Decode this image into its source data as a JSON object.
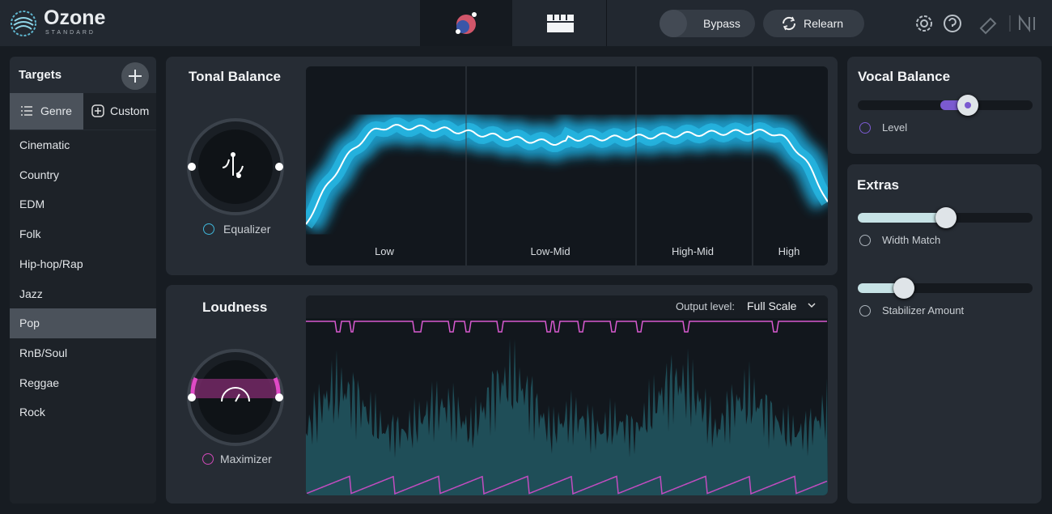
{
  "header": {
    "logo": "Ozone",
    "edition": "STANDARD",
    "bypass": "Bypass",
    "relearn": "Relearn"
  },
  "targets": {
    "title": "Targets",
    "tabs": [
      "Genre",
      "Custom"
    ],
    "genres": [
      "Cinematic",
      "Country",
      "EDM",
      "Folk",
      "Hip-hop/Rap",
      "Jazz",
      "Pop",
      "RnB/Soul",
      "Reggae",
      "Rock"
    ]
  },
  "tonal_balance": {
    "title": "Tonal Balance",
    "module": "Equalizer",
    "bands": [
      "Low",
      "Low-Mid",
      "High-Mid",
      "High"
    ]
  },
  "loudness": {
    "title": "Loudness",
    "module": "Maximizer",
    "output_label": "Output level:",
    "output_value": "Full Scale"
  },
  "vocal_balance": {
    "title": "Vocal Balance",
    "control": "Level"
  },
  "extras": {
    "title": "Extras",
    "controls": [
      "Width Match",
      "Stabilizer Amount"
    ]
  }
}
